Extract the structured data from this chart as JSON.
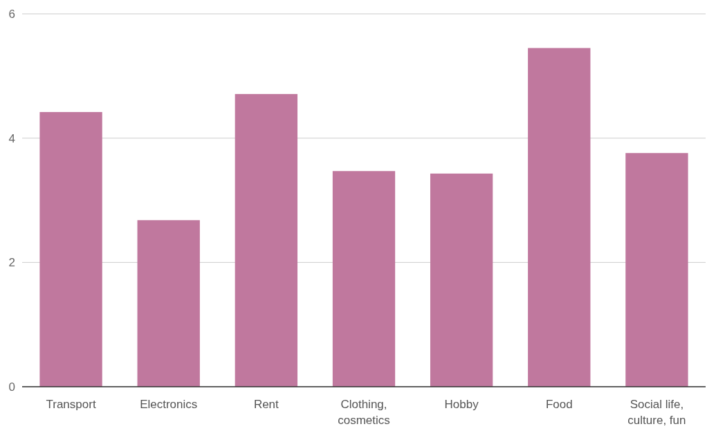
{
  "chart_data": {
    "type": "bar",
    "categories": [
      "Transport",
      "Electronics",
      "Rent",
      "Clothing, cosmetics",
      "Hobby",
      "Food",
      "Social life, culture, fun"
    ],
    "values": [
      4.42,
      2.68,
      4.71,
      3.47,
      3.43,
      5.45,
      3.76
    ],
    "color": "#c0789e",
    "ylim": [
      0,
      6
    ],
    "yticks": [
      0,
      2,
      4,
      6
    ],
    "grid": "y"
  }
}
